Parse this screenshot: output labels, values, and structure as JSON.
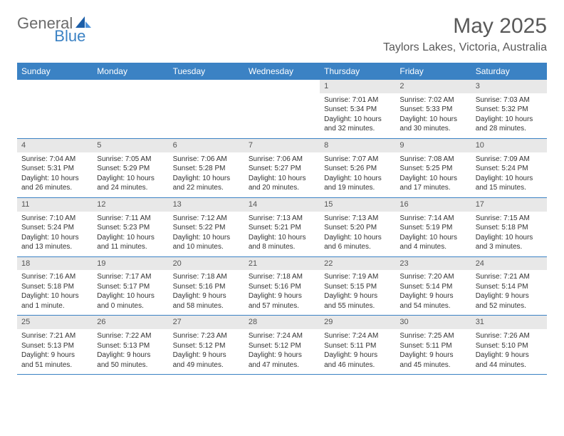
{
  "logo": {
    "general": "General",
    "blue": "Blue"
  },
  "title": "May 2025",
  "location": "Taylors Lakes, Victoria, Australia",
  "colors": {
    "header_bg": "#3b82c4",
    "header_text": "#ffffff",
    "daynum_bg": "#e8e8e8",
    "text": "#333333",
    "title_text": "#595959",
    "logo_gray": "#6b6b6b",
    "logo_blue": "#3b82c4",
    "row_border": "#3b82c4",
    "background": "#ffffff"
  },
  "dayNames": [
    "Sunday",
    "Monday",
    "Tuesday",
    "Wednesday",
    "Thursday",
    "Friday",
    "Saturday"
  ],
  "weeks": [
    [
      {
        "num": "",
        "sunrise": "",
        "sunset": "",
        "daylight": ""
      },
      {
        "num": "",
        "sunrise": "",
        "sunset": "",
        "daylight": ""
      },
      {
        "num": "",
        "sunrise": "",
        "sunset": "",
        "daylight": ""
      },
      {
        "num": "",
        "sunrise": "",
        "sunset": "",
        "daylight": ""
      },
      {
        "num": "1",
        "sunrise": "Sunrise: 7:01 AM",
        "sunset": "Sunset: 5:34 PM",
        "daylight": "Daylight: 10 hours and 32 minutes."
      },
      {
        "num": "2",
        "sunrise": "Sunrise: 7:02 AM",
        "sunset": "Sunset: 5:33 PM",
        "daylight": "Daylight: 10 hours and 30 minutes."
      },
      {
        "num": "3",
        "sunrise": "Sunrise: 7:03 AM",
        "sunset": "Sunset: 5:32 PM",
        "daylight": "Daylight: 10 hours and 28 minutes."
      }
    ],
    [
      {
        "num": "4",
        "sunrise": "Sunrise: 7:04 AM",
        "sunset": "Sunset: 5:31 PM",
        "daylight": "Daylight: 10 hours and 26 minutes."
      },
      {
        "num": "5",
        "sunrise": "Sunrise: 7:05 AM",
        "sunset": "Sunset: 5:29 PM",
        "daylight": "Daylight: 10 hours and 24 minutes."
      },
      {
        "num": "6",
        "sunrise": "Sunrise: 7:06 AM",
        "sunset": "Sunset: 5:28 PM",
        "daylight": "Daylight: 10 hours and 22 minutes."
      },
      {
        "num": "7",
        "sunrise": "Sunrise: 7:06 AM",
        "sunset": "Sunset: 5:27 PM",
        "daylight": "Daylight: 10 hours and 20 minutes."
      },
      {
        "num": "8",
        "sunrise": "Sunrise: 7:07 AM",
        "sunset": "Sunset: 5:26 PM",
        "daylight": "Daylight: 10 hours and 19 minutes."
      },
      {
        "num": "9",
        "sunrise": "Sunrise: 7:08 AM",
        "sunset": "Sunset: 5:25 PM",
        "daylight": "Daylight: 10 hours and 17 minutes."
      },
      {
        "num": "10",
        "sunrise": "Sunrise: 7:09 AM",
        "sunset": "Sunset: 5:24 PM",
        "daylight": "Daylight: 10 hours and 15 minutes."
      }
    ],
    [
      {
        "num": "11",
        "sunrise": "Sunrise: 7:10 AM",
        "sunset": "Sunset: 5:24 PM",
        "daylight": "Daylight: 10 hours and 13 minutes."
      },
      {
        "num": "12",
        "sunrise": "Sunrise: 7:11 AM",
        "sunset": "Sunset: 5:23 PM",
        "daylight": "Daylight: 10 hours and 11 minutes."
      },
      {
        "num": "13",
        "sunrise": "Sunrise: 7:12 AM",
        "sunset": "Sunset: 5:22 PM",
        "daylight": "Daylight: 10 hours and 10 minutes."
      },
      {
        "num": "14",
        "sunrise": "Sunrise: 7:13 AM",
        "sunset": "Sunset: 5:21 PM",
        "daylight": "Daylight: 10 hours and 8 minutes."
      },
      {
        "num": "15",
        "sunrise": "Sunrise: 7:13 AM",
        "sunset": "Sunset: 5:20 PM",
        "daylight": "Daylight: 10 hours and 6 minutes."
      },
      {
        "num": "16",
        "sunrise": "Sunrise: 7:14 AM",
        "sunset": "Sunset: 5:19 PM",
        "daylight": "Daylight: 10 hours and 4 minutes."
      },
      {
        "num": "17",
        "sunrise": "Sunrise: 7:15 AM",
        "sunset": "Sunset: 5:18 PM",
        "daylight": "Daylight: 10 hours and 3 minutes."
      }
    ],
    [
      {
        "num": "18",
        "sunrise": "Sunrise: 7:16 AM",
        "sunset": "Sunset: 5:18 PM",
        "daylight": "Daylight: 10 hours and 1 minute."
      },
      {
        "num": "19",
        "sunrise": "Sunrise: 7:17 AM",
        "sunset": "Sunset: 5:17 PM",
        "daylight": "Daylight: 10 hours and 0 minutes."
      },
      {
        "num": "20",
        "sunrise": "Sunrise: 7:18 AM",
        "sunset": "Sunset: 5:16 PM",
        "daylight": "Daylight: 9 hours and 58 minutes."
      },
      {
        "num": "21",
        "sunrise": "Sunrise: 7:18 AM",
        "sunset": "Sunset: 5:16 PM",
        "daylight": "Daylight: 9 hours and 57 minutes."
      },
      {
        "num": "22",
        "sunrise": "Sunrise: 7:19 AM",
        "sunset": "Sunset: 5:15 PM",
        "daylight": "Daylight: 9 hours and 55 minutes."
      },
      {
        "num": "23",
        "sunrise": "Sunrise: 7:20 AM",
        "sunset": "Sunset: 5:14 PM",
        "daylight": "Daylight: 9 hours and 54 minutes."
      },
      {
        "num": "24",
        "sunrise": "Sunrise: 7:21 AM",
        "sunset": "Sunset: 5:14 PM",
        "daylight": "Daylight: 9 hours and 52 minutes."
      }
    ],
    [
      {
        "num": "25",
        "sunrise": "Sunrise: 7:21 AM",
        "sunset": "Sunset: 5:13 PM",
        "daylight": "Daylight: 9 hours and 51 minutes."
      },
      {
        "num": "26",
        "sunrise": "Sunrise: 7:22 AM",
        "sunset": "Sunset: 5:13 PM",
        "daylight": "Daylight: 9 hours and 50 minutes."
      },
      {
        "num": "27",
        "sunrise": "Sunrise: 7:23 AM",
        "sunset": "Sunset: 5:12 PM",
        "daylight": "Daylight: 9 hours and 49 minutes."
      },
      {
        "num": "28",
        "sunrise": "Sunrise: 7:24 AM",
        "sunset": "Sunset: 5:12 PM",
        "daylight": "Daylight: 9 hours and 47 minutes."
      },
      {
        "num": "29",
        "sunrise": "Sunrise: 7:24 AM",
        "sunset": "Sunset: 5:11 PM",
        "daylight": "Daylight: 9 hours and 46 minutes."
      },
      {
        "num": "30",
        "sunrise": "Sunrise: 7:25 AM",
        "sunset": "Sunset: 5:11 PM",
        "daylight": "Daylight: 9 hours and 45 minutes."
      },
      {
        "num": "31",
        "sunrise": "Sunrise: 7:26 AM",
        "sunset": "Sunset: 5:10 PM",
        "daylight": "Daylight: 9 hours and 44 minutes."
      }
    ]
  ]
}
